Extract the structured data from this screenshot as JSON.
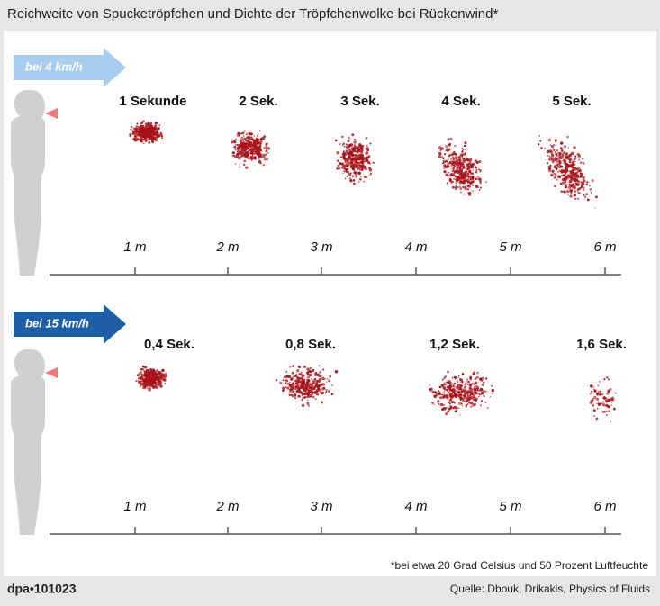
{
  "title": "Reichweite von Spucketröpfchen und Dichte der Tröpfchenwolke bei Rückenwind*",
  "panels": [
    {
      "speed": "bei 4 km/h",
      "clouds": [
        "1 Sekunde",
        "2 Sek.",
        "3 Sek.",
        "4 Sek.",
        "5 Sek."
      ],
      "axis": [
        "1 m",
        "2 m",
        "3 m",
        "4 m",
        "5 m",
        "6 m"
      ]
    },
    {
      "speed": "bei 15 km/h",
      "clouds": [
        "0,4 Sek.",
        "0,8 Sek.",
        "1,2 Sek.",
        "1,6 Sek."
      ],
      "axis": [
        "1 m",
        "2 m",
        "3 m",
        "4 m",
        "5 m",
        "6 m"
      ]
    }
  ],
  "footnote": "*bei etwa 20 Grad Celsius und 50 Prozent Luftfeuchte",
  "credit": "dpa•101023",
  "source": "Quelle: Dbouk, Drikakis, Physics of Fluids"
}
